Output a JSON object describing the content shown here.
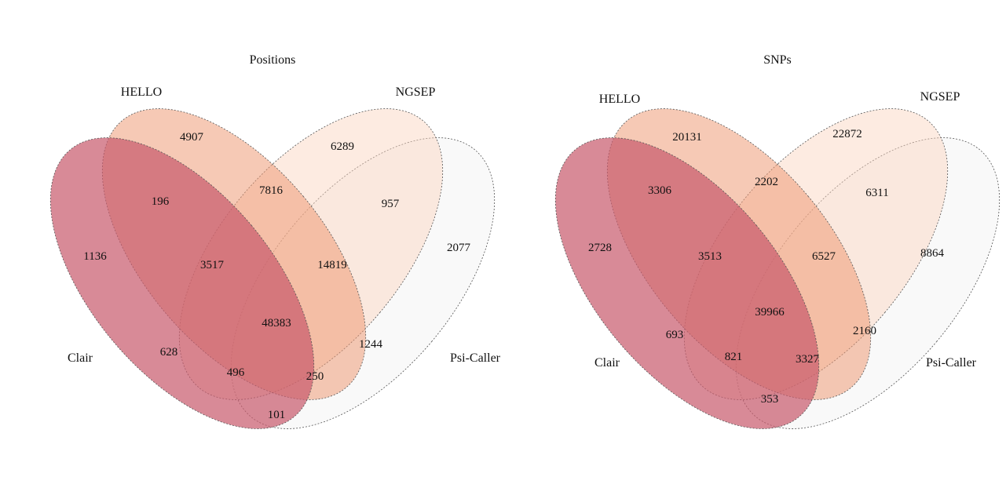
{
  "diagrams": [
    {
      "title": "Positions",
      "sets": [
        "Clair",
        "HELLO",
        "NGSEP",
        "Psi-Caller"
      ],
      "regions": {
        "clair_only": "1136",
        "hello_only": "4907",
        "ngsep_only": "6289",
        "psi_only": "2077",
        "clair_hello": "196",
        "hello_ngsep": "7816",
        "ngsep_psi": "957",
        "clair_hello_ngsep": "3517",
        "hello_ngsep_psi": "14819",
        "all_four": "48383",
        "clair_ngsep": "628",
        "hello_psi": "1244",
        "clair_ngsep_psi": "496",
        "clair_hello_psi": "250",
        "clair_psi": "101"
      }
    },
    {
      "title": "SNPs",
      "sets": [
        "Clair",
        "HELLO",
        "NGSEP",
        "Psi-Caller"
      ],
      "regions": {
        "clair_only": "2728",
        "hello_only": "20131",
        "ngsep_only": "22872",
        "psi_only": "8864",
        "clair_hello": "3306",
        "hello_ngsep": "2202",
        "ngsep_psi": "6311",
        "clair_hello_ngsep": "3513",
        "hello_ngsep_psi": "6527",
        "all_four": "39966",
        "clair_ngsep": "693",
        "hello_psi": "2160",
        "clair_ngsep_psi": "821",
        "clair_hello_psi": "3327",
        "clair_psi": "353"
      }
    }
  ],
  "colors": {
    "clair": "#c8596b",
    "hello": "#ee9872",
    "ngsep": "#fbd2bd",
    "psi": "#f0f0f0"
  }
}
